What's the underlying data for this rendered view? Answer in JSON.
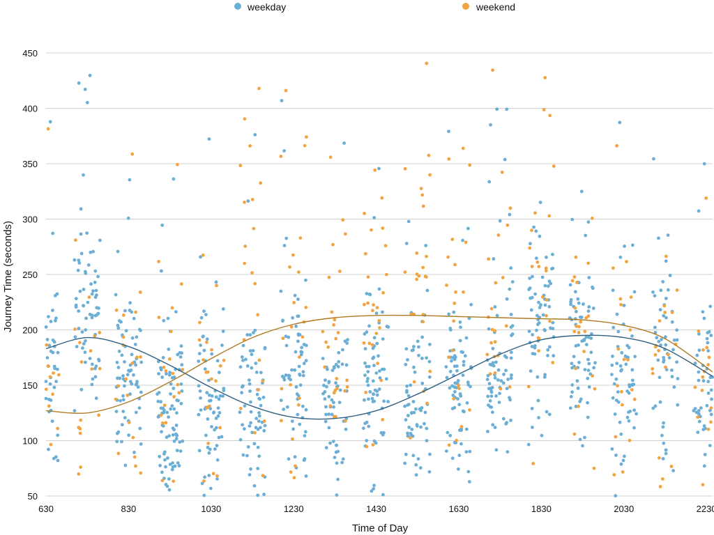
{
  "chart_data": {
    "type": "scatter",
    "xlabel": "Time of Day",
    "ylabel": "Journey Time (seconds)",
    "xlim": [
      630,
      2245
    ],
    "ylim": [
      50,
      450
    ],
    "x_ticks": [
      630,
      830,
      1030,
      1230,
      1430,
      1630,
      1830,
      2030,
      2230
    ],
    "y_ticks": [
      50,
      100,
      150,
      200,
      250,
      300,
      350,
      400,
      450
    ],
    "grid": "horizontal",
    "legend_position": "top",
    "legend": [
      {
        "name": "weekday",
        "color": "#6baed6"
      },
      {
        "name": "weekend",
        "color": "#f2a441"
      }
    ],
    "series": [
      {
        "name": "weekday",
        "color": "#6baed6",
        "cluster_x": [
          630,
          730,
          830,
          930,
          1030,
          1130,
          1230,
          1330,
          1430,
          1530,
          1630,
          1730,
          1830,
          1930,
          2030,
          2130,
          2230
        ],
        "cluster_center_y": [
          160,
          220,
          170,
          130,
          130,
          125,
          150,
          135,
          150,
          135,
          140,
          150,
          205,
          180,
          160,
          180,
          150
        ],
        "cluster_count": [
          55,
          70,
          75,
          90,
          70,
          70,
          70,
          60,
          70,
          70,
          75,
          75,
          70,
          70,
          60,
          55,
          60
        ],
        "trend_x": [
          630,
          730,
          830,
          930,
          1030,
          1130,
          1230,
          1330,
          1430,
          1530,
          1630,
          1730,
          1830,
          1930,
          2030,
          2130,
          2245
        ],
        "trend_y": [
          183,
          193,
          185,
          168,
          148,
          131,
          121,
          120,
          127,
          142,
          160,
          178,
          191,
          195,
          193,
          183,
          158
        ]
      },
      {
        "name": "weekend",
        "color": "#f2a441",
        "cluster_x": [
          630,
          730,
          830,
          930,
          1030,
          1130,
          1230,
          1330,
          1430,
          1530,
          1630,
          1730,
          1830,
          1930,
          2030,
          2130,
          2230
        ],
        "cluster_center_y": [
          150,
          130,
          140,
          150,
          160,
          170,
          175,
          200,
          215,
          200,
          180,
          190,
          230,
          195,
          175,
          175,
          170
        ],
        "cluster_count": [
          18,
          20,
          20,
          20,
          20,
          22,
          24,
          26,
          28,
          26,
          22,
          22,
          24,
          22,
          20,
          20,
          22
        ],
        "trend_x": [
          630,
          730,
          830,
          930,
          1030,
          1130,
          1230,
          1330,
          1430,
          1530,
          1630,
          1730,
          1830,
          1930,
          2030,
          2130,
          2245
        ],
        "trend_y": [
          127,
          125,
          135,
          153,
          174,
          193,
          205,
          211,
          213,
          213,
          212,
          211,
          210,
          209,
          204,
          192,
          162
        ]
      }
    ]
  }
}
